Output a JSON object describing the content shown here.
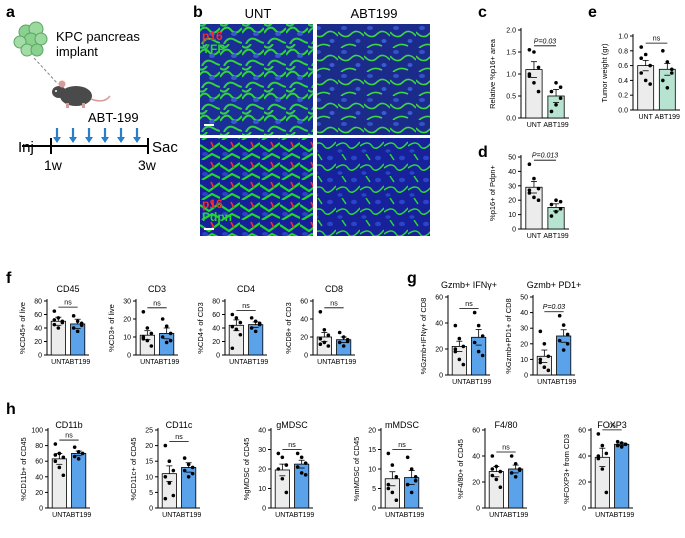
{
  "panel_letters": {
    "a": "a",
    "b": "b",
    "c": "c",
    "d": "d",
    "e": "e",
    "f": "f",
    "g": "g",
    "h": "h"
  },
  "schematic": {
    "implant": "KPC pancreas",
    "implant2": "implant",
    "drug": "ABT-199",
    "start": "Inj",
    "end": "Sac",
    "t1": "1w",
    "t2": "3w"
  },
  "microscopy": {
    "col1": "UNT",
    "col2": "ABT199",
    "row1": [
      "p16",
      "YFP"
    ],
    "row2": [
      "p16",
      "Pdpn"
    ]
  },
  "colors": {
    "unt_fill": "#ececec",
    "abt_top_fill": "#b7e4d1",
    "abt_bottom_fill": "#5aa2ea",
    "p16": "#ff2a2a",
    "green": "#27d431",
    "bg_blue": "#1a2fa0"
  },
  "chart_data": [
    {
      "id": "c",
      "type": "bar",
      "categories": [
        "UNT",
        "ABT199"
      ],
      "values": [
        1.1,
        0.5
      ],
      "sem": [
        0.18,
        0.15
      ],
      "points": [
        [
          1.55,
          1.5,
          1.15,
          0.95,
          0.8,
          0.6,
          1.0
        ],
        [
          0.15,
          0.3,
          0.45,
          0.6,
          0.8,
          0.7
        ]
      ],
      "ylabel": "Relative %p16+ area",
      "yticks": [
        "0.0",
        "0.5",
        "1.0",
        "1.5",
        "2.0"
      ],
      "ylim": [
        0,
        2.0
      ],
      "sig": "P=0.03"
    },
    {
      "id": "d",
      "type": "bar",
      "categories": [
        "UNT",
        "ABT199"
      ],
      "values": [
        29,
        15
      ],
      "sem": [
        4,
        2.5
      ],
      "points": [
        [
          45,
          35,
          28,
          25,
          22,
          20,
          27
        ],
        [
          9,
          12,
          14,
          17,
          20,
          19
        ]
      ],
      "ylabel": "%p16+ of Pdpn+",
      "yticks": [
        "0",
        "10",
        "20",
        "30",
        "40",
        "50"
      ],
      "ylim": [
        0,
        50
      ],
      "sig": "P=0.013"
    },
    {
      "id": "e",
      "type": "bar",
      "categories": [
        "UNT",
        "ABT199"
      ],
      "values": [
        0.6,
        0.55
      ],
      "sem": [
        0.07,
        0.08
      ],
      "points": [
        [
          0.85,
          0.75,
          0.6,
          0.5,
          0.4,
          0.35,
          0.7
        ],
        [
          0.8,
          0.65,
          0.5,
          0.4,
          0.3,
          0.55
        ]
      ],
      "ylabel": "Tumor weight (gr)",
      "yticks": [
        "0.0",
        "0.2",
        "0.4",
        "0.6",
        "0.8",
        "1.0"
      ],
      "ylim": [
        0,
        1.0
      ],
      "sig": "ns"
    },
    {
      "id": "f1",
      "type": "bar",
      "title": "CD45",
      "categories": [
        "UNT",
        "ABT199"
      ],
      "values": [
        50,
        46
      ],
      "sem": [
        6,
        7
      ],
      "points": [
        [
          65,
          55,
          50,
          45,
          40,
          48,
          52
        ],
        [
          58,
          50,
          44,
          40,
          35,
          47
        ]
      ],
      "ylabel": "%CD45+ of live",
      "yticks": [
        "0",
        "20",
        "40",
        "60",
        "80"
      ],
      "ylim": [
        0,
        80
      ],
      "sig": "ns"
    },
    {
      "id": "f2",
      "type": "bar",
      "title": "CD3",
      "categories": [
        "UNT",
        "ABT199"
      ],
      "values": [
        11,
        12
      ],
      "sem": [
        2.5,
        3
      ],
      "points": [
        [
          24,
          15,
          12,
          10,
          8,
          5,
          9
        ],
        [
          20,
          16,
          12,
          10,
          7,
          8
        ]
      ],
      "ylabel": "%CD3+ of live",
      "yticks": [
        "0",
        "10",
        "20",
        "30"
      ],
      "ylim": [
        0,
        30
      ],
      "sig": "ns"
    },
    {
      "id": "f3",
      "type": "bar",
      "title": "CD4",
      "categories": [
        "UNT",
        "ABT199"
      ],
      "values": [
        44,
        45
      ],
      "sem": [
        8,
        4
      ],
      "points": [
        [
          60,
          55,
          48,
          42,
          38,
          30,
          10
        ],
        [
          55,
          50,
          45,
          40,
          35,
          47
        ]
      ],
      "ylabel": "%CD4+ of CD3",
      "yticks": [
        "0",
        "20",
        "40",
        "60",
        "80"
      ],
      "ylim": [
        0,
        80
      ],
      "sig": "ns"
    },
    {
      "id": "f4",
      "type": "bar",
      "title": "CD8",
      "categories": [
        "UNT",
        "ABT199"
      ],
      "values": [
        20,
        17
      ],
      "sem": [
        5,
        3
      ],
      "points": [
        [
          48,
          28,
          22,
          18,
          14,
          10,
          12
        ],
        [
          25,
          20,
          17,
          14,
          10,
          15
        ]
      ],
      "ylabel": "%CD8+ of CD3",
      "yticks": [
        "0",
        "20",
        "40",
        "60"
      ],
      "ylim": [
        0,
        60
      ],
      "sig": "ns"
    },
    {
      "id": "g1",
      "type": "bar",
      "title": "Gzmb+ IFNγ+",
      "categories": [
        "UNT",
        "ABT199"
      ],
      "values": [
        22,
        29
      ],
      "sem": [
        4,
        6
      ],
      "points": [
        [
          38,
          28,
          22,
          18,
          12,
          8,
          20
        ],
        [
          48,
          38,
          30,
          25,
          18,
          15
        ]
      ],
      "ylabel": "%Gzmb+IFNγ+ of CD8",
      "yticks": [
        "0",
        "20",
        "40",
        "60"
      ],
      "ylim": [
        0,
        60
      ],
      "sig": "ns"
    },
    {
      "id": "g2",
      "type": "bar",
      "title": "Gzmb+ PD1+",
      "categories": [
        "UNT",
        "ABT199"
      ],
      "values": [
        12,
        25
      ],
      "sem": [
        4,
        4
      ],
      "points": [
        [
          28,
          20,
          12,
          8,
          5,
          3,
          10
        ],
        [
          38,
          32,
          26,
          22,
          16,
          20
        ]
      ],
      "ylabel": "%Gzmb+PD1+ of CD8",
      "yticks": [
        "0",
        "10",
        "20",
        "30",
        "40",
        "50"
      ],
      "ylim": [
        0,
        50
      ],
      "sig": "P=0.03"
    },
    {
      "id": "h1",
      "type": "bar",
      "title": "CD11b",
      "categories": [
        "UNT",
        "ABT199"
      ],
      "values": [
        63,
        70
      ],
      "sem": [
        7,
        3
      ],
      "points": [
        [
          82,
          70,
          65,
          60,
          52,
          42,
          68
        ],
        [
          78,
          72,
          70,
          66,
          63
        ]
      ],
      "ylabel": "%CD11b+ of CD45",
      "yticks": [
        "0",
        "20",
        "40",
        "60",
        "80",
        "100"
      ],
      "ylim": [
        0,
        100
      ],
      "sig": "ns"
    },
    {
      "id": "h2",
      "type": "bar",
      "title": "CD11c",
      "categories": [
        "UNT",
        "ABT199"
      ],
      "values": [
        11,
        13
      ],
      "sem": [
        2.5,
        1.5
      ],
      "points": [
        [
          20,
          15,
          12,
          10,
          8,
          4,
          3
        ],
        [
          16,
          14,
          13,
          12,
          10,
          11
        ]
      ],
      "ylabel": "%CD11c+ of CD45",
      "yticks": [
        "0",
        "5",
        "10",
        "15",
        "20",
        "25"
      ],
      "ylim": [
        0,
        25
      ],
      "sig": "ns"
    },
    {
      "id": "h3",
      "type": "bar",
      "title": "gMDSC",
      "categories": [
        "UNT",
        "ABT199"
      ],
      "values": [
        19.5,
        22.5
      ],
      "sem": [
        3,
        2
      ],
      "points": [
        [
          28,
          26,
          22,
          20,
          15,
          8
        ],
        [
          28,
          26,
          23,
          21,
          18,
          17
        ]
      ],
      "ylabel": "%gMDSC of CD45",
      "yticks": [
        "0",
        "10",
        "20",
        "30",
        "40"
      ],
      "ylim": [
        0,
        40
      ],
      "sig": "ns"
    },
    {
      "id": "h4",
      "type": "bar",
      "title": "mMDSC",
      "categories": [
        "UNT",
        "ABT199"
      ],
      "values": [
        7.5,
        7.8
      ],
      "sem": [
        1.8,
        1.8
      ],
      "points": [
        [
          14,
          11,
          8,
          6,
          4,
          2,
          5
        ],
        [
          13,
          10,
          8,
          6,
          4,
          7
        ]
      ],
      "ylabel": "%mMDSC of CD45",
      "yticks": [
        "0",
        "5",
        "10",
        "15",
        "20"
      ],
      "ylim": [
        0,
        20
      ],
      "sig": "ns"
    },
    {
      "id": "h5",
      "type": "bar",
      "title": "F4/80",
      "categories": [
        "UNT",
        "ABT199"
      ],
      "values": [
        28,
        30
      ],
      "sem": [
        4,
        3
      ],
      "points": [
        [
          40,
          32,
          28,
          25,
          22,
          16,
          30
        ],
        [
          40,
          34,
          30,
          27,
          24,
          29
        ]
      ],
      "ylabel": "%F4/80+ of CD45",
      "yticks": [
        "0",
        "20",
        "40",
        "60"
      ],
      "ylim": [
        0,
        60
      ],
      "sig": "ns"
    },
    {
      "id": "h6",
      "type": "bar",
      "title": "FOXP3",
      "categories": [
        "UNT",
        "ABT199"
      ],
      "values": [
        39,
        49
      ],
      "sem": [
        7,
        1
      ],
      "points": [
        [
          57,
          48,
          42,
          38,
          30,
          12,
          40
        ],
        [
          51,
          50,
          49,
          48,
          47
        ]
      ],
      "ylabel": "%FOXP3+ from CD3",
      "yticks": [
        "0",
        "20",
        "40",
        "60"
      ],
      "ylim": [
        0,
        60
      ],
      "sig": "ns"
    }
  ]
}
